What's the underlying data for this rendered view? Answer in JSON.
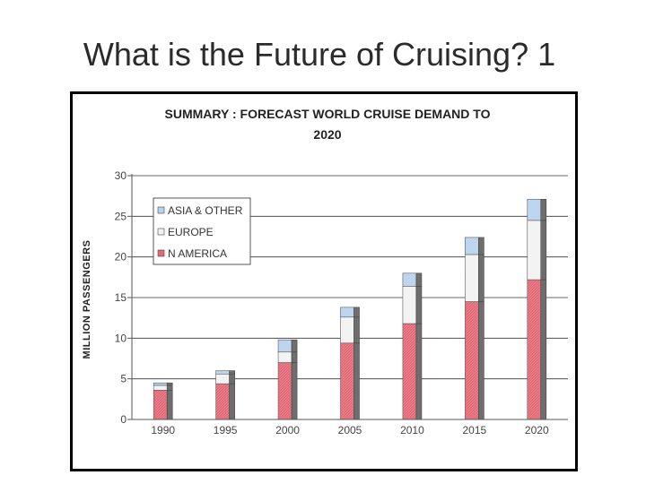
{
  "slide": {
    "title": "What is the Future of Cruising? 1"
  },
  "chart_data": {
    "type": "bar",
    "title_line1": "SUMMARY : FORECAST WORLD CRUISE DEMAND TO",
    "title_line2": "2020",
    "xlabel": "",
    "ylabel": "MILLION  PASSENGERS",
    "ylim": [
      0,
      30
    ],
    "yticks": [
      0,
      5,
      10,
      15,
      20,
      25,
      30
    ],
    "categories": [
      "1990",
      "1995",
      "2000",
      "2005",
      "2010",
      "2015",
      "2020"
    ],
    "stacked": true,
    "grid": true,
    "legend_position": "top-left",
    "series": [
      {
        "name": "N AMERICA",
        "values": [
          3.6,
          4.4,
          7.0,
          9.4,
          11.8,
          14.5,
          17.2
        ],
        "color": "#e46a78"
      },
      {
        "name": "EUROPE",
        "values": [
          0.6,
          1.2,
          1.3,
          3.2,
          4.6,
          5.8,
          7.3
        ],
        "color": "#f2f2f2"
      },
      {
        "name": "ASIA & OTHER",
        "values": [
          0.3,
          0.4,
          1.5,
          1.2,
          1.6,
          2.1,
          2.6
        ],
        "color": "#b9d3ee"
      }
    ],
    "legend_order": [
      "ASIA & OTHER",
      "EUROPE",
      "N AMERICA"
    ]
  }
}
